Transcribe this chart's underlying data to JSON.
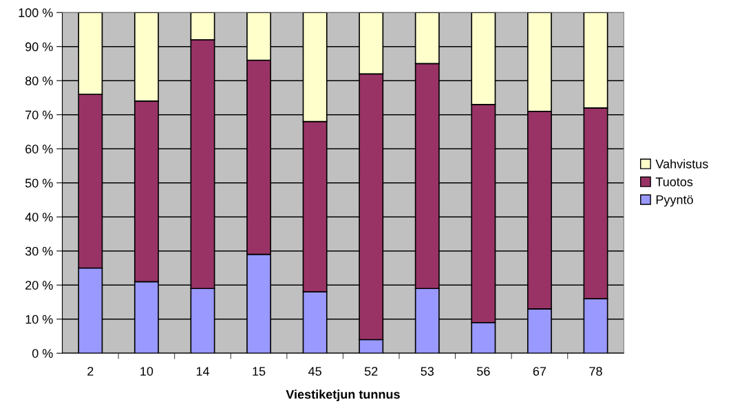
{
  "chart_data": {
    "type": "bar",
    "stacked": true,
    "xlabel": "Viestiketjun tunnus",
    "categories": [
      "2",
      "10",
      "14",
      "15",
      "45",
      "52",
      "53",
      "56",
      "67",
      "78"
    ],
    "series": [
      {
        "name": "Pyyntö",
        "color": "#9999ff",
        "values": [
          25,
          21,
          19,
          29,
          18,
          4,
          19,
          9,
          13,
          16
        ]
      },
      {
        "name": "Tuotos",
        "color": "#993366",
        "values": [
          51,
          53,
          73,
          57,
          50,
          78,
          66,
          64,
          58,
          56
        ]
      },
      {
        "name": "Vahvistus",
        "color": "#ffffcc",
        "values": [
          24,
          26,
          8,
          14,
          32,
          18,
          15,
          27,
          29,
          28
        ]
      }
    ],
    "ylim": [
      0,
      100
    ],
    "yticks": [
      {
        "value": 0,
        "label": "0 %"
      },
      {
        "value": 10,
        "label": "10 %"
      },
      {
        "value": 20,
        "label": "20 %"
      },
      {
        "value": 30,
        "label": "30 %"
      },
      {
        "value": 40,
        "label": "40 %"
      },
      {
        "value": 50,
        "label": "50 %"
      },
      {
        "value": 60,
        "label": "60 %"
      },
      {
        "value": 70,
        "label": "70 %"
      },
      {
        "value": 80,
        "label": "80 %"
      },
      {
        "value": 90,
        "label": "90 %"
      },
      {
        "value": 100,
        "label": "100 %"
      }
    ],
    "grid": "y",
    "legend": "right"
  }
}
